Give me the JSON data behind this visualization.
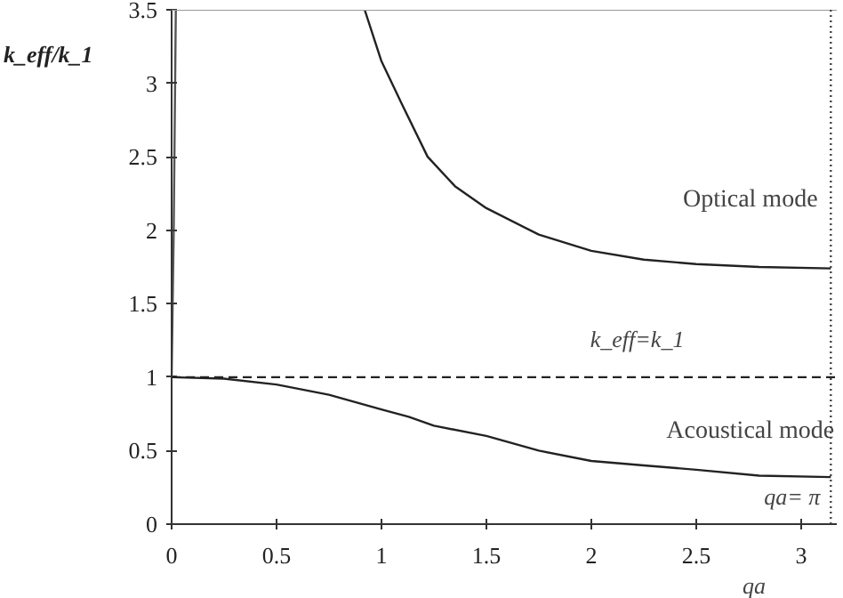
{
  "chart_data": {
    "type": "line",
    "xlabel": "qa",
    "ylabel": "k_eff/k_1",
    "xlim": [
      0,
      3.17
    ],
    "ylim": [
      0,
      3.5
    ],
    "xticks": [
      0,
      0.5,
      1,
      1.5,
      2,
      2.5,
      3
    ],
    "yticks": [
      0,
      0.5,
      1,
      1.5,
      2,
      2.5,
      3,
      3.5
    ],
    "grid": false,
    "marker": "none",
    "line_style": "solid",
    "series": [
      {
        "color": "#222222",
        "x": [
          0.92,
          1.0,
          1.1,
          1.22,
          1.35,
          1.5,
          1.75,
          2.0,
          2.25,
          2.5,
          2.8,
          3.1416
        ],
        "values": [
          3.5,
          3.15,
          2.85,
          2.5,
          2.3,
          2.15,
          1.97,
          1.86,
          1.8,
          1.77,
          1.75,
          1.74
        ]
      },
      {
        "color": "#222222",
        "x": [
          0,
          0.25,
          0.5,
          0.75,
          1.0,
          1.13,
          1.25,
          1.5,
          1.75,
          2.0,
          2.25,
          2.5,
          2.8,
          3.1416
        ],
        "values": [
          1,
          0.99,
          0.95,
          0.88,
          0.78,
          0.73,
          0.67,
          0.6,
          0.5,
          0.43,
          0.4,
          0.37,
          0.33,
          0.32
        ]
      },
      {
        "color": "#555555",
        "x": [
          0,
          0.01,
          0.02
        ],
        "values": [
          1,
          2,
          3.5
        ]
      }
    ],
    "ref_lines": [
      {
        "axis": "y",
        "value": 1,
        "label": "k_eff=k_1",
        "line_style": "dashed",
        "color": "#222222"
      },
      {
        "axis": "x",
        "value": 3.1416,
        "label": "qa= π",
        "line_style": "dotted",
        "color": "#444444"
      }
    ],
    "annotations": [
      "Optical mode",
      "Acoustical mode"
    ]
  }
}
